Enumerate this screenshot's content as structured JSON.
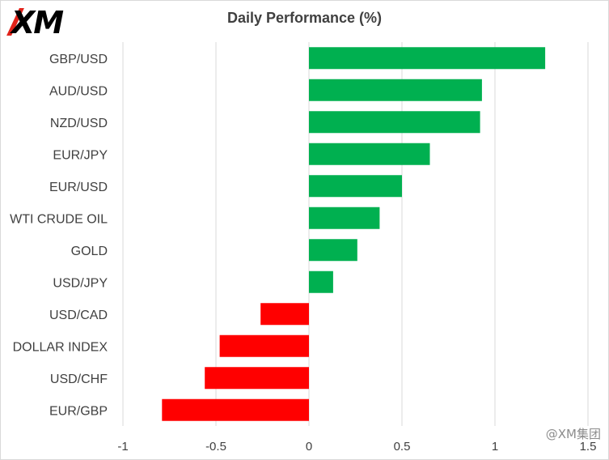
{
  "brand": {
    "logo_text": "XM"
  },
  "watermark": "@XM集团",
  "chart_data": {
    "type": "bar",
    "orientation": "horizontal",
    "title": "Daily Performance  (%)",
    "categories": [
      "GBP/USD",
      "AUD/USD",
      "NZD/USD",
      "EUR/JPY",
      "EUR/USD",
      "WTI CRUDE OIL",
      "GOLD",
      "USD/JPY",
      "USD/CAD",
      "DOLLAR INDEX",
      "USD/CHF",
      "EUR/GBP"
    ],
    "values": [
      1.27,
      0.93,
      0.92,
      0.65,
      0.5,
      0.38,
      0.26,
      0.13,
      -0.26,
      -0.48,
      -0.56,
      -0.79
    ],
    "xlim": [
      -1,
      1.5
    ],
    "xticks": [
      "-1",
      "-0.5",
      "0",
      "0.5",
      "1",
      "1.5"
    ],
    "grid": true,
    "colors": {
      "positive": "#00b050",
      "negative": "#ff0000",
      "grid": "#d9d9d9"
    }
  }
}
